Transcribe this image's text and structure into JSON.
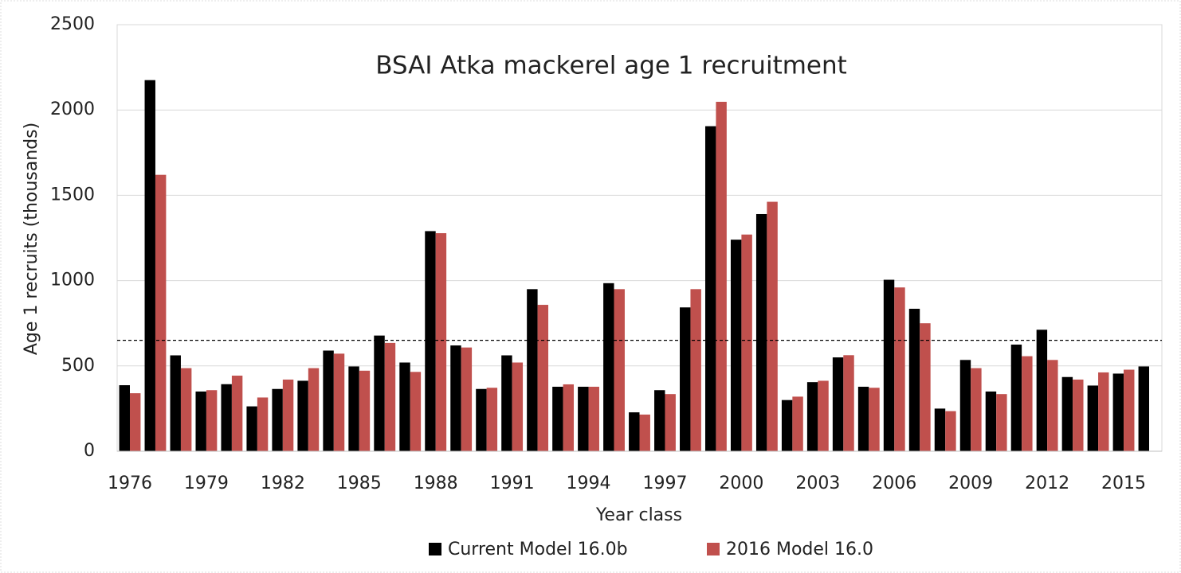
{
  "chart_data": {
    "type": "bar",
    "title": "BSAI Atka mackerel age 1 recruitment",
    "x_label": "Year class",
    "y_label": "Age 1 recruits (thousands)",
    "categories": [
      "1976",
      null,
      null,
      "1979",
      null,
      null,
      "1982",
      null,
      null,
      "1985",
      null,
      null,
      "1988",
      null,
      null,
      "1991",
      null,
      null,
      "1994",
      null,
      null,
      "1997",
      null,
      null,
      "2000",
      null,
      null,
      "2003",
      null,
      null,
      "2006",
      null,
      null,
      "2009",
      null,
      null,
      "2012",
      null,
      null,
      "2015",
      null
    ],
    "series": [
      {
        "name": "Current Model 16.0b",
        "color": "#000000",
        "values": [
          387,
          2175,
          562,
          350,
          393,
          263,
          365,
          413,
          590,
          497,
          678,
          520,
          1290,
          620,
          365,
          562,
          950,
          378,
          378,
          985,
          228,
          358,
          843,
          1905,
          1240,
          1390,
          300,
          405,
          550,
          378,
          1005,
          835,
          250,
          535,
          350,
          625,
          712,
          435,
          385,
          455,
          497
        ]
      },
      {
        "name": "2016 Model 16.0",
        "color": "#c0504d",
        "values": [
          340,
          1620,
          487,
          358,
          443,
          315,
          420,
          487,
          572,
          472,
          635,
          465,
          1278,
          608,
          372,
          520,
          858,
          392,
          378,
          950,
          215,
          335,
          950,
          2048,
          1270,
          1462,
          320,
          413,
          563,
          372,
          960,
          750,
          235,
          487,
          335,
          557,
          535,
          420,
          462,
          478,
          null
        ]
      }
    ],
    "reference_line": 650,
    "ylim": [
      0,
      2500
    ],
    "yticks": [
      0,
      500,
      1000,
      1500,
      2000,
      2500
    ],
    "grid": true,
    "legend": "bottom"
  }
}
